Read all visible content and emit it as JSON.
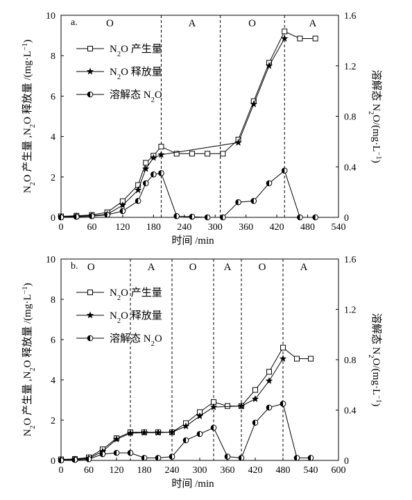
{
  "chart_data": [
    {
      "panel_label": "a.",
      "type": "line",
      "xlabel": "时间 /min",
      "ylabel_left": "N2O 产生量 ,N2O 释放量 /(mg·L⁻¹)",
      "ylabel_right": "溶解态 N2O/(mg·L⁻¹)",
      "xlim": [
        0,
        540
      ],
      "ylim_left": [
        0,
        10
      ],
      "ylim_right": [
        0,
        1.6
      ],
      "x_ticks": [
        "0",
        "60",
        "120",
        "180",
        "240",
        "300",
        "360",
        "420",
        "480",
        "540"
      ],
      "y_ticks_left": [
        "0",
        "2",
        "4",
        "6",
        "8",
        "10"
      ],
      "y_ticks_right": [
        "0",
        "0.4",
        "0.8",
        "1.2",
        "1.6"
      ],
      "phase_lines": [
        195,
        310,
        435
      ],
      "phase_labels": [
        {
          "text": "O",
          "x": 95
        },
        {
          "text": "A",
          "x": 255
        },
        {
          "text": "O",
          "x": 372
        },
        {
          "text": "A",
          "x": 490
        }
      ],
      "legend": {
        "placement": "top-left"
      },
      "series": [
        {
          "name": "N2O 产生量",
          "axis": "left",
          "marker": "square",
          "x": [
            0,
            30,
            60,
            90,
            120,
            150,
            165,
            180,
            195,
            225,
            255,
            285,
            315,
            345,
            375,
            405,
            435,
            465,
            495
          ],
          "y": [
            0.05,
            0.08,
            0.12,
            0.25,
            0.8,
            1.6,
            2.7,
            3.05,
            3.5,
            3.15,
            3.15,
            3.15,
            3.15,
            3.85,
            5.75,
            7.65,
            9.2,
            8.85,
            8.85
          ]
        },
        {
          "name": "N2O 释放量",
          "axis": "left",
          "marker": "star",
          "x": [
            0,
            30,
            60,
            90,
            120,
            150,
            165,
            180,
            195,
            345,
            375,
            405,
            435
          ],
          "y": [
            0.02,
            0.05,
            0.08,
            0.15,
            0.6,
            1.35,
            2.4,
            2.95,
            3.1,
            3.7,
            5.6,
            7.5,
            8.85
          ]
        },
        {
          "name": "溶解态 N2O",
          "axis": "right",
          "marker": "half-circle",
          "x": [
            0,
            30,
            60,
            90,
            120,
            150,
            165,
            180,
            195,
            225,
            255,
            285,
            315,
            345,
            375,
            405,
            435,
            465,
            495
          ],
          "y": [
            0.0,
            0.005,
            0.01,
            0.02,
            0.05,
            0.13,
            0.27,
            0.34,
            0.35,
            0.01,
            0.005,
            0.0,
            0.0,
            0.12,
            0.13,
            0.27,
            0.37,
            0.0,
            0.0
          ]
        }
      ]
    },
    {
      "panel_label": "b.",
      "type": "line",
      "xlabel": "时间 /min",
      "ylabel_left": "N2O 产生量 ,N2O 释放量 /(mg·L⁻¹)",
      "ylabel_right": "溶解态 N2O/(mg·L⁻¹)",
      "xlim": [
        0,
        600
      ],
      "ylim_left": [
        0,
        10
      ],
      "ylim_right": [
        0,
        1.6
      ],
      "x_ticks": [
        "0",
        "60",
        "120",
        "180",
        "240",
        "300",
        "360",
        "420",
        "480",
        "540",
        "600"
      ],
      "y_ticks_left": [
        "0",
        "2",
        "4",
        "6",
        "8",
        "10"
      ],
      "y_ticks_right": [
        "0",
        "0.4",
        "0.8",
        "1.2",
        "1.6"
      ],
      "phase_lines": [
        150,
        240,
        330,
        390,
        480
      ],
      "phase_labels": [
        {
          "text": "O",
          "x": 65
        },
        {
          "text": "A",
          "x": 195
        },
        {
          "text": "O",
          "x": 285
        },
        {
          "text": "A",
          "x": 360
        },
        {
          "text": "O",
          "x": 435
        },
        {
          "text": "A",
          "x": 525
        }
      ],
      "legend": {
        "placement": "top-left"
      },
      "series": [
        {
          "name": "N2O 产生量",
          "axis": "left",
          "marker": "square",
          "x": [
            0,
            30,
            60,
            90,
            120,
            150,
            180,
            210,
            240,
            270,
            300,
            330,
            360,
            390,
            420,
            450,
            480,
            510,
            540
          ],
          "y": [
            0.05,
            0.07,
            0.15,
            0.55,
            1.1,
            1.4,
            1.4,
            1.4,
            1.4,
            1.85,
            2.4,
            2.9,
            2.7,
            2.7,
            3.5,
            4.4,
            5.6,
            5.05,
            5.05
          ]
        },
        {
          "name": "N2O 释放量",
          "axis": "left",
          "marker": "star",
          "x": [
            0,
            30,
            60,
            90,
            120,
            150,
            180,
            210,
            240,
            270,
            300,
            330,
            390,
            420,
            450,
            480
          ],
          "y": [
            0.03,
            0.05,
            0.1,
            0.45,
            1.05,
            1.35,
            1.38,
            1.38,
            1.4,
            1.7,
            2.2,
            2.65,
            2.7,
            3.05,
            3.95,
            5.05
          ]
        },
        {
          "name": "溶解态 N2O",
          "axis": "right",
          "marker": "half-circle",
          "x": [
            0,
            30,
            60,
            90,
            120,
            150,
            180,
            210,
            240,
            270,
            300,
            330,
            360,
            390,
            420,
            450,
            480,
            510,
            540
          ],
          "y": [
            0.0,
            0.005,
            0.01,
            0.05,
            0.06,
            0.06,
            0.02,
            0.02,
            0.03,
            0.16,
            0.21,
            0.26,
            0.03,
            0.02,
            0.3,
            0.42,
            0.45,
            0.02,
            0.02
          ]
        }
      ]
    }
  ]
}
